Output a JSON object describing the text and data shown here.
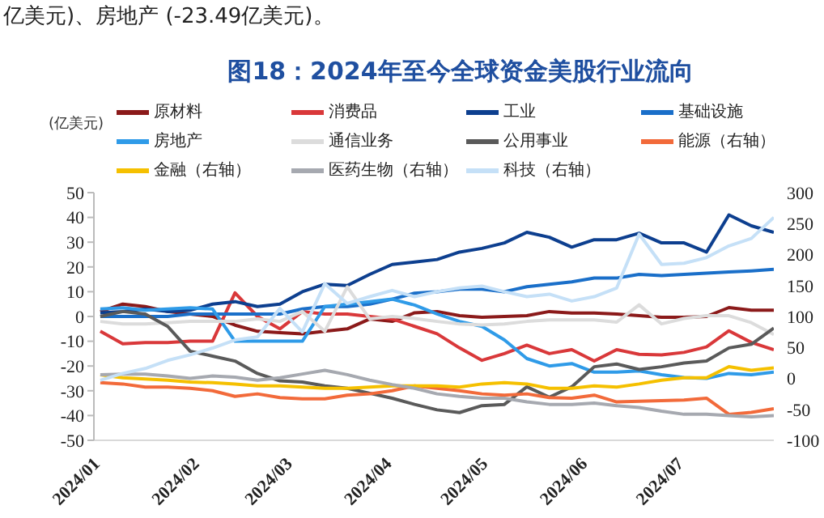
{
  "chart_data": {
    "type": "line",
    "title": "图18：2024年至今全球资金美股行业流向",
    "ylabel": "(亿美元)",
    "annotations": [
      "亿美元)、房地产 (-23.49亿美元)。"
    ],
    "x": [
      "2024-01-03",
      "2024-01-10",
      "2024-01-17",
      "2024-01-24",
      "2024-01-31",
      "2024-02-07",
      "2024-02-14",
      "2024-02-21",
      "2024-02-28",
      "2024-03-06",
      "2024-03-13",
      "2024-03-20",
      "2024-03-27",
      "2024-04-03",
      "2024-04-10",
      "2024-04-17",
      "2024-04-24",
      "2024-05-01",
      "2024-05-08",
      "2024-05-15",
      "2024-05-22",
      "2024-05-29",
      "2024-06-05",
      "2024-06-12",
      "2024-06-19",
      "2024-06-26",
      "2024-07-03",
      "2024-07-10",
      "2024-07-17",
      "2024-07-24",
      "2024-07-31"
    ],
    "xticks": [
      {
        "value": "2024-01-01",
        "label": "2024/01"
      },
      {
        "value": "2024-02-01",
        "label": "2024/02"
      },
      {
        "value": "2024-03-01",
        "label": "2024/03"
      },
      {
        "value": "2024-04-01",
        "label": "2024/04"
      },
      {
        "value": "2024-05-01",
        "label": "2024/05"
      },
      {
        "value": "2024-06-01",
        "label": "2024/06"
      },
      {
        "value": "2024-07-01",
        "label": "2024/07"
      }
    ],
    "xlim": [
      "2024-01-01",
      "2024-07-31"
    ],
    "ylim": [
      -50,
      50
    ],
    "yticks": [
      -50,
      -40,
      -30,
      -20,
      -10,
      0,
      10,
      20,
      30,
      40,
      50
    ],
    "y2lim": [
      -100,
      300
    ],
    "y2ticks": [
      -100,
      -50,
      0,
      50,
      100,
      150,
      200,
      250,
      300
    ],
    "legend": "top",
    "series": [
      {
        "name": "原材料",
        "color": "#8b1a1a",
        "values": [
          2,
          5,
          4,
          2,
          1,
          0,
          -3.5,
          -6,
          -6.5,
          -7,
          -6,
          -5,
          -1,
          -2,
          1.5,
          2,
          0.3,
          -0.3,
          0,
          0.3,
          2,
          1.4,
          1.4,
          1,
          0.3,
          -0.3,
          -0.3,
          0,
          3.6,
          2.5,
          2.5
        ]
      },
      {
        "name": "消费品",
        "color": "#d9383a",
        "values": [
          -6,
          -11,
          -10.5,
          -10.5,
          -10,
          -10,
          9.5,
          0,
          -5,
          2,
          1,
          1,
          0,
          -1,
          -4,
          -7,
          -12.7,
          -17.7,
          -15,
          -11.6,
          -15,
          -13.4,
          -18,
          -13.4,
          -15.3,
          -15.5,
          -14.5,
          -12.3,
          -5.8,
          -10.5,
          -13.4
        ]
      },
      {
        "name": "工业",
        "color": "#0d3f8f",
        "values": [
          1.5,
          2,
          3,
          2,
          2.5,
          5,
          6,
          4,
          5,
          10,
          13,
          12.5,
          17,
          21,
          22,
          23,
          26,
          27.5,
          29.7,
          34,
          32,
          28,
          31,
          31,
          33.6,
          29.7,
          29.7,
          26,
          41,
          36.6,
          34
        ]
      },
      {
        "name": "基础设施",
        "color": "#1a6fc9",
        "values": [
          0,
          0,
          0,
          0,
          1,
          1,
          1,
          1,
          1,
          3,
          4,
          4,
          5,
          7,
          9.4,
          10,
          11,
          11,
          10,
          12,
          13,
          14,
          15.5,
          15.5,
          17,
          16.5,
          17,
          17.5,
          18,
          18.4,
          19
        ]
      },
      {
        "name": "房地产",
        "color": "#2f9be8",
        "values": [
          3,
          3.5,
          2.5,
          3,
          3.5,
          3,
          -10,
          -10,
          -10,
          -10,
          4,
          5,
          6,
          7,
          4.6,
          1,
          -2,
          -4,
          -9.5,
          -17,
          -20,
          -19,
          -22.5,
          -22.5,
          -22,
          -23.5,
          -24.7,
          -25,
          -23,
          -23.5,
          -22.5
        ]
      },
      {
        "name": "通信业务",
        "color": "#dcdcdc",
        "values": [
          -2,
          -3,
          -3,
          -2.5,
          -2,
          -2,
          -2,
          -1,
          -2,
          2,
          -6,
          12,
          -1,
          0,
          -0.8,
          -2,
          -3,
          -3.4,
          -3,
          -2,
          -1.4,
          -1.4,
          -1.4,
          -2.3,
          4.7,
          -3,
          -0.8,
          0.3,
          0.3,
          -2.5,
          -7.3
        ]
      },
      {
        "name": "公用事业",
        "color": "#5a5a5a",
        "values": [
          0,
          2,
          1,
          -4,
          -14,
          -16,
          -18,
          -23,
          -26,
          -26.5,
          -28,
          -29,
          -31,
          -33,
          -35.5,
          -37.7,
          -38.8,
          -36,
          -35.5,
          -28.4,
          -32.6,
          -28.4,
          -20.3,
          -19.2,
          -21.4,
          -20.3,
          -18.8,
          -18,
          -12.7,
          -11.2,
          -4.7
        ]
      },
      {
        "name": "能源（右轴）",
        "color": "#f26a3a",
        "axis": "y2",
        "values": [
          -7,
          -9,
          -14,
          -14,
          -16,
          -20,
          -29,
          -25,
          -31,
          -33,
          -33,
          -27,
          -25,
          -20,
          -12,
          -16,
          -20,
          -25,
          -27,
          -25,
          -31,
          -32,
          -27,
          -38,
          -37,
          -36,
          -35,
          -32,
          -58,
          -55,
          -49
        ]
      },
      {
        "name": "金融（右轴）",
        "color": "#f5c000",
        "axis": "y2",
        "values": [
          6,
          1,
          -1,
          -3,
          -6,
          -7,
          -9,
          -12,
          -12,
          -14,
          -16,
          -16,
          -14,
          -12,
          -12,
          -12,
          -14,
          -9,
          -7,
          -9,
          -16,
          -16,
          -12,
          -14,
          -9,
          -3,
          1,
          1,
          19,
          13,
          17
        ]
      },
      {
        "name": "医药生物（右轴）",
        "color": "#a6a9b0",
        "axis": "y2",
        "values": [
          6,
          7,
          7,
          4,
          0,
          4,
          2,
          -3,
          1,
          7,
          13,
          6,
          -3,
          -10,
          -16,
          -25,
          -29,
          -32,
          -32,
          -38,
          -42,
          -42,
          -40,
          -44,
          -47,
          -53,
          -58,
          -58,
          -60,
          -62,
          -60
        ]
      },
      {
        "name": "科技（右轴）",
        "color": "#c5e0f7",
        "axis": "y2",
        "values": [
          -3,
          8,
          16,
          29,
          38,
          49,
          62,
          67,
          113,
          75,
          153,
          121,
          132,
          142,
          132,
          140,
          146,
          149,
          140,
          132,
          136,
          125,
          132,
          146,
          233,
          184,
          186,
          195,
          214,
          226,
          260
        ]
      }
    ]
  }
}
